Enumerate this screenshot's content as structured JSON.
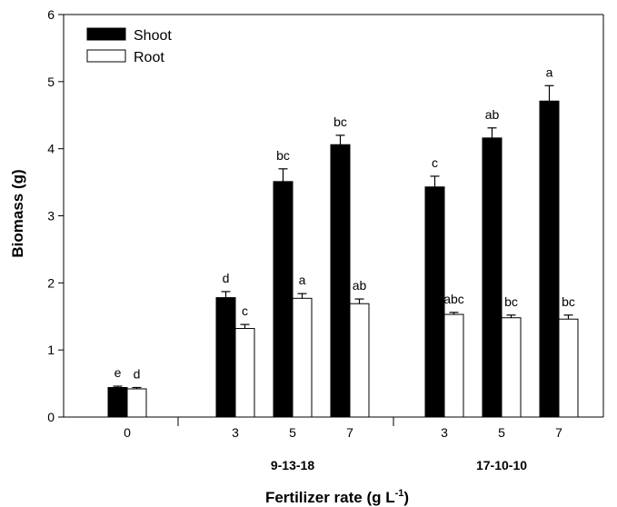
{
  "chart_data": {
    "type": "bar",
    "xlabel": "Fertilizer rate (g L",
    "xlabel_superscript": "-1",
    "xlabel_suffix": ")",
    "ylabel": "Biomass (g)",
    "ylim": [
      0,
      6
    ],
    "yticks": [
      "0",
      "1",
      "2",
      "3",
      "4",
      "5",
      "6"
    ],
    "grid": false,
    "legend_position": "top-left",
    "series": [
      {
        "name": "Shoot",
        "color": "#000000"
      },
      {
        "name": "Root",
        "color": "#ffffff"
      }
    ],
    "groups": [
      {
        "label": "",
        "rates": [
          {
            "rate": "0",
            "shoot": 0.44,
            "shoot_err": 0.02,
            "shoot_sig": "e",
            "root": 0.42,
            "root_err": 0.02,
            "root_sig": "d"
          }
        ]
      },
      {
        "label": "9-13-18",
        "rates": [
          {
            "rate": "3",
            "shoot": 1.78,
            "shoot_err": 0.09,
            "shoot_sig": "d",
            "root": 1.32,
            "root_err": 0.06,
            "root_sig": "c"
          },
          {
            "rate": "5",
            "shoot": 3.51,
            "shoot_err": 0.19,
            "shoot_sig": "bc",
            "root": 1.77,
            "root_err": 0.07,
            "root_sig": "a"
          },
          {
            "rate": "7",
            "shoot": 4.06,
            "shoot_err": 0.14,
            "shoot_sig": "bc",
            "root": 1.69,
            "root_err": 0.07,
            "root_sig": "ab"
          }
        ]
      },
      {
        "label": "17-10-10",
        "rates": [
          {
            "rate": "3",
            "shoot": 3.43,
            "shoot_err": 0.16,
            "shoot_sig": "c",
            "root": 1.53,
            "root_err": 0.03,
            "root_sig": "abc"
          },
          {
            "rate": "5",
            "shoot": 4.16,
            "shoot_err": 0.15,
            "shoot_sig": "ab",
            "root": 1.48,
            "root_err": 0.04,
            "root_sig": "bc"
          },
          {
            "rate": "7",
            "shoot": 4.71,
            "shoot_err": 0.23,
            "shoot_sig": "a",
            "root": 1.46,
            "root_err": 0.06,
            "root_sig": "bc"
          }
        ]
      }
    ]
  }
}
